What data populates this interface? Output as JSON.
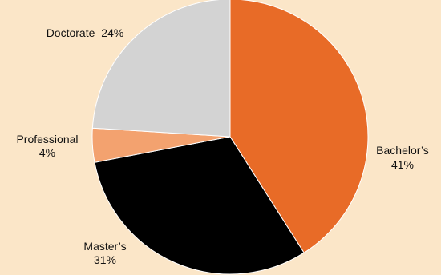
{
  "chart_data": {
    "type": "pie",
    "title": "",
    "slices": [
      {
        "label": "Bachelor’s",
        "value": 41,
        "value_label": "41%",
        "color": "#e86b27"
      },
      {
        "label": "Master’s",
        "value": 31,
        "value_label": "31%",
        "color": "#000000"
      },
      {
        "label": "Professional",
        "value": 4,
        "value_label": "4%",
        "color": "#f3a26f"
      },
      {
        "label": "Doctorate",
        "value": 24,
        "value_label": "24%",
        "color": "#d3d3d3"
      }
    ],
    "start_angle": "12 o'clock",
    "direction": "clockwise",
    "legend": "none"
  },
  "colors": {
    "background": "#fbe6c8",
    "text": "#111111",
    "slice_border": "#ffffff"
  }
}
